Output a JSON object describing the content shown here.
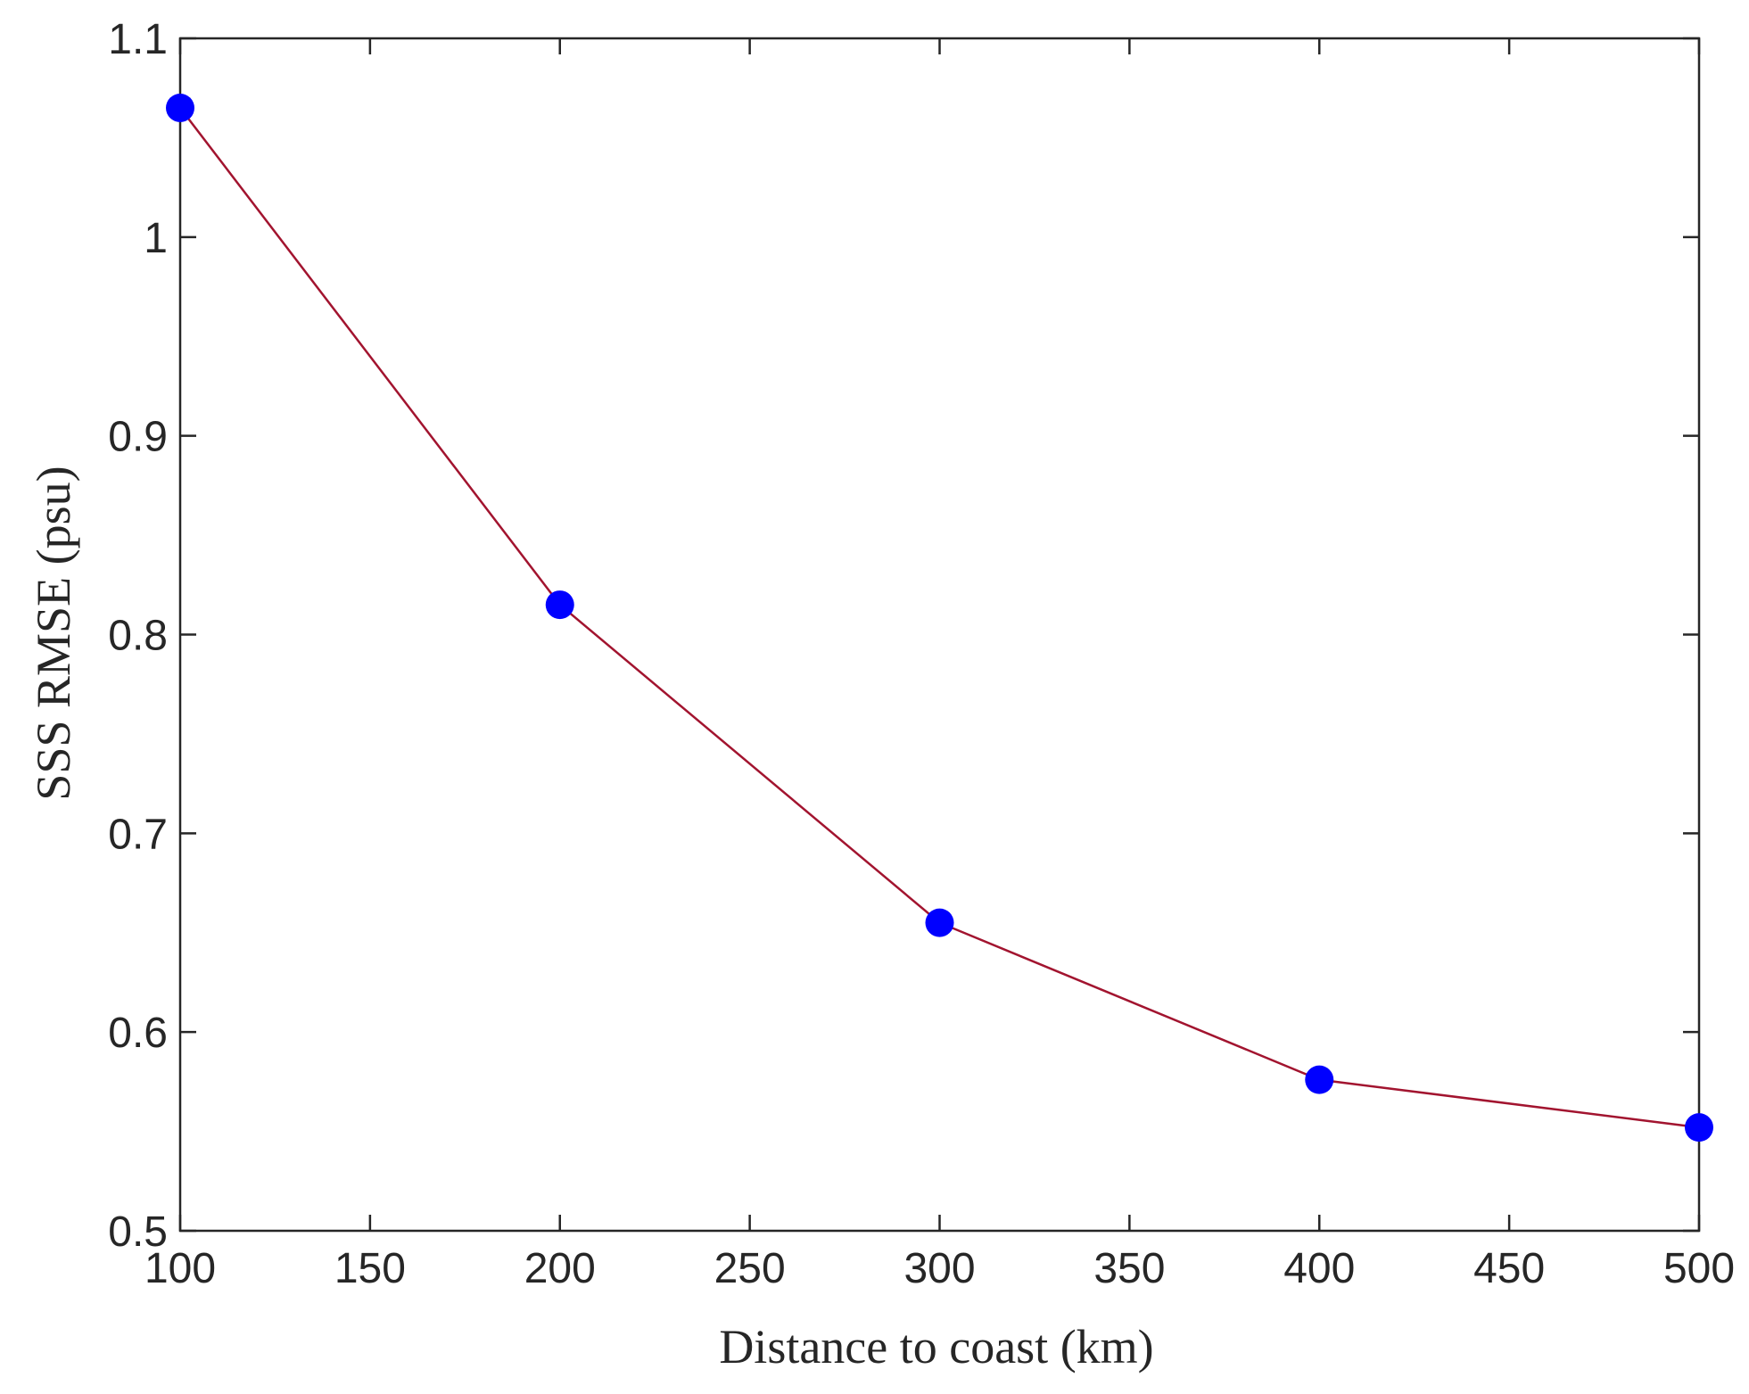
{
  "chart_data": {
    "type": "line",
    "title": "",
    "xlabel": "Distance to coast (km)",
    "ylabel": "SSS RMSE (psu)",
    "xlim": [
      100,
      500
    ],
    "ylim": [
      0.5,
      1.1
    ],
    "x_ticks": [
      "100",
      "150",
      "200",
      "250",
      "300",
      "350",
      "400",
      "450",
      "500"
    ],
    "y_ticks": [
      "0.5",
      "0.6",
      "0.7",
      "0.8",
      "0.9",
      "1",
      "1.1"
    ],
    "grid": false,
    "legend": "none",
    "series": [
      {
        "x": [
          100,
          200,
          300,
          400,
          500
        ],
        "values": [
          1.065,
          0.815,
          0.655,
          0.576,
          0.552
        ],
        "line_color": "#A2142F",
        "marker_color": "#0000FF",
        "marker": "circle"
      }
    ]
  }
}
